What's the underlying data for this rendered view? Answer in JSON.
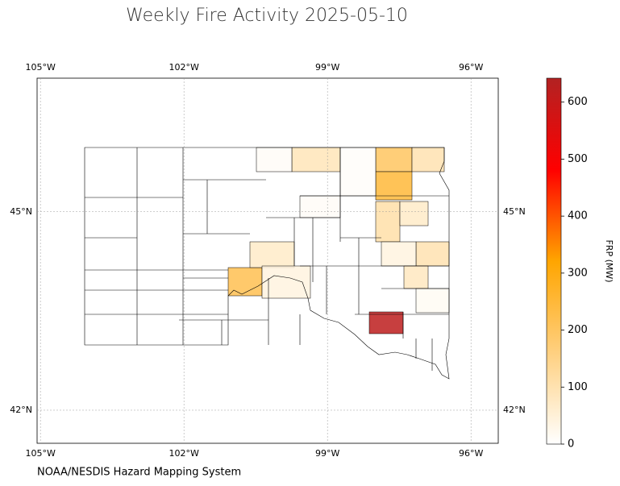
{
  "chart_data": {
    "type": "choropleth",
    "title": "Weekly Fire Activity 2025-05-10",
    "source": "NOAA/NESDIS Hazard Mapping System",
    "colorbar_label": "FRP (MW)",
    "xlim": [
      -105.07,
      -95.43
    ],
    "ylim": [
      41.5,
      47.02
    ],
    "xticks": [
      {
        "value": -105,
        "label": "105°W"
      },
      {
        "value": -102,
        "label": "102°W"
      },
      {
        "value": -99,
        "label": "99°W"
      },
      {
        "value": -96,
        "label": "96°W"
      }
    ],
    "yticks": [
      {
        "value": 42,
        "label": "42°N"
      },
      {
        "value": 45,
        "label": "45°N"
      }
    ],
    "grid": true,
    "clim": [
      0,
      642
    ],
    "cticks": [
      0,
      100,
      200,
      300,
      400,
      500,
      600
    ],
    "colormap": [
      "#ffffff",
      "#ffd080",
      "#ffa500",
      "#ff0000",
      "#b22222"
    ],
    "values": [
      90,
      200,
      250,
      100,
      110,
      70,
      100,
      40,
      80,
      220,
      70,
      40,
      620,
      10,
      8,
      15,
      10
    ]
  }
}
